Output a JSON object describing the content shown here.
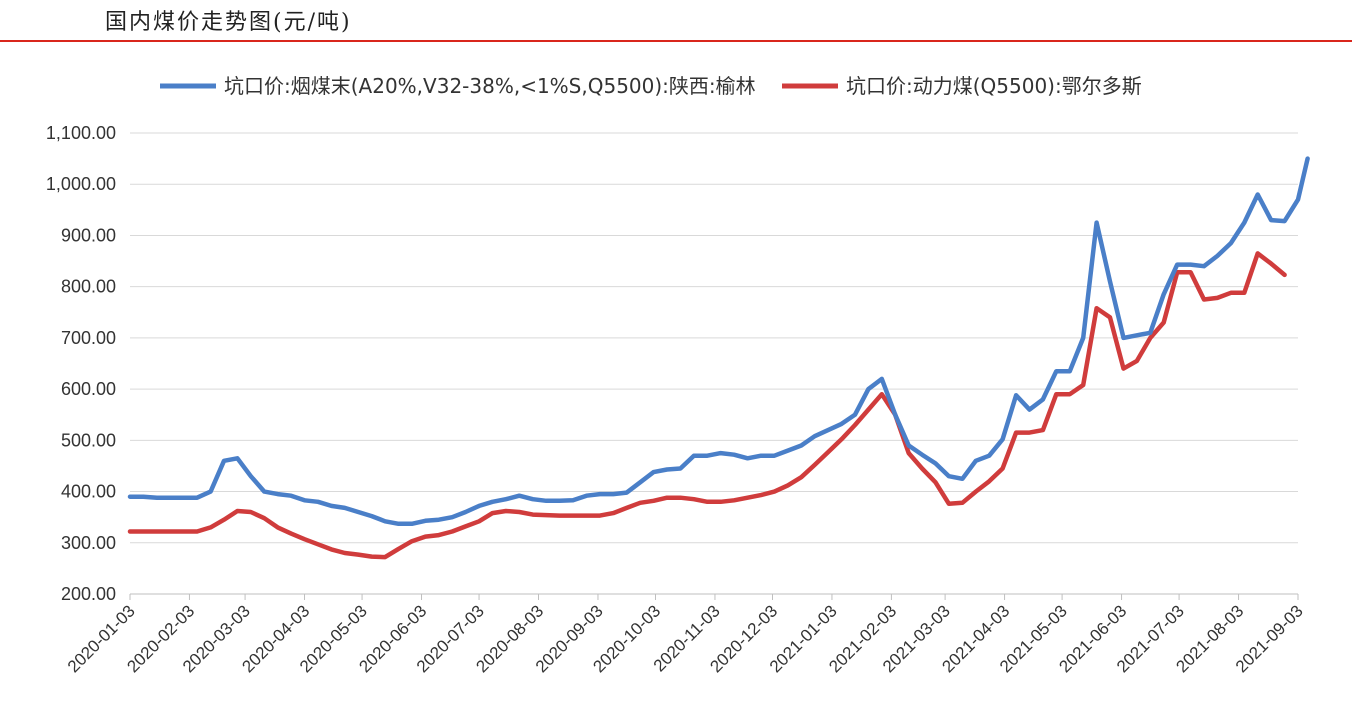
{
  "header": {
    "title": "国内煤价走势图(元/吨)"
  },
  "colors": {
    "series1": "#4a7fc8",
    "series2": "#d03c3c",
    "grid": "#d9d9d9",
    "rule": "#d9261c"
  },
  "chart_data": {
    "type": "line",
    "ylim": [
      200,
      1100
    ],
    "y_ticks": [
      "200.00",
      "300.00",
      "400.00",
      "500.00",
      "600.00",
      "700.00",
      "800.00",
      "900.00",
      "1,000.00",
      "1,100.00"
    ],
    "x_ticks": [
      "2020-01-03",
      "2020-02-03",
      "2020-03-03",
      "2020-04-03",
      "2020-05-03",
      "2020-06-03",
      "2020-07-03",
      "2020-08-03",
      "2020-09-03",
      "2020-10-03",
      "2020-11-03",
      "2020-12-03",
      "2021-01-03",
      "2021-02-03",
      "2021-03-03",
      "2021-04-03",
      "2021-05-03",
      "2021-06-03",
      "2021-07-03",
      "2021-08-03",
      "2021-09-03"
    ],
    "legend_position": "top",
    "grid": true,
    "series": [
      {
        "name": "坑口价:烟煤末(A20%,V32-38%,<1%S,Q5500):陕西:榆林",
        "color": "#4a7fc8",
        "points": [
          [
            "2020-01-03",
            390
          ],
          [
            "2020-01-10",
            390
          ],
          [
            "2020-01-17",
            388
          ],
          [
            "2020-01-24",
            388
          ],
          [
            "2020-01-31",
            388
          ],
          [
            "2020-02-07",
            388
          ],
          [
            "2020-02-14",
            400
          ],
          [
            "2020-02-21",
            460
          ],
          [
            "2020-02-28",
            465
          ],
          [
            "2020-03-06",
            430
          ],
          [
            "2020-03-13",
            400
          ],
          [
            "2020-03-20",
            395
          ],
          [
            "2020-03-27",
            392
          ],
          [
            "2020-04-03",
            383
          ],
          [
            "2020-04-10",
            380
          ],
          [
            "2020-04-17",
            372
          ],
          [
            "2020-04-24",
            368
          ],
          [
            "2020-05-01",
            360
          ],
          [
            "2020-05-08",
            352
          ],
          [
            "2020-05-15",
            342
          ],
          [
            "2020-05-22",
            337
          ],
          [
            "2020-05-29",
            337
          ],
          [
            "2020-06-05",
            343
          ],
          [
            "2020-06-12",
            345
          ],
          [
            "2020-06-19",
            350
          ],
          [
            "2020-06-26",
            360
          ],
          [
            "2020-07-03",
            372
          ],
          [
            "2020-07-10",
            380
          ],
          [
            "2020-07-17",
            385
          ],
          [
            "2020-07-24",
            392
          ],
          [
            "2020-07-31",
            385
          ],
          [
            "2020-08-07",
            382
          ],
          [
            "2020-08-14",
            382
          ],
          [
            "2020-08-21",
            383
          ],
          [
            "2020-08-28",
            392
          ],
          [
            "2020-09-04",
            395
          ],
          [
            "2020-09-11",
            395
          ],
          [
            "2020-09-18",
            398
          ],
          [
            "2020-09-25",
            418
          ],
          [
            "2020-10-02",
            438
          ],
          [
            "2020-10-09",
            443
          ],
          [
            "2020-10-16",
            445
          ],
          [
            "2020-10-23",
            470
          ],
          [
            "2020-10-30",
            470
          ],
          [
            "2020-11-06",
            475
          ],
          [
            "2020-11-13",
            472
          ],
          [
            "2020-11-20",
            465
          ],
          [
            "2020-11-27",
            470
          ],
          [
            "2020-12-04",
            470
          ],
          [
            "2020-12-11",
            480
          ],
          [
            "2020-12-18",
            490
          ],
          [
            "2020-12-25",
            508
          ],
          [
            "2021-01-01",
            520
          ],
          [
            "2021-01-08",
            532
          ],
          [
            "2021-01-15",
            550
          ],
          [
            "2021-01-22",
            600
          ],
          [
            "2021-01-29",
            620
          ],
          [
            "2021-02-05",
            550
          ],
          [
            "2021-02-12",
            490
          ],
          [
            "2021-02-19",
            472
          ],
          [
            "2021-02-26",
            455
          ],
          [
            "2021-03-05",
            430
          ],
          [
            "2021-03-12",
            425
          ],
          [
            "2021-03-19",
            460
          ],
          [
            "2021-03-26",
            470
          ],
          [
            "2021-04-02",
            502
          ],
          [
            "2021-04-09",
            588
          ],
          [
            "2021-04-16",
            560
          ],
          [
            "2021-04-23",
            580
          ],
          [
            "2021-04-30",
            635
          ],
          [
            "2021-05-07",
            635
          ],
          [
            "2021-05-14",
            700
          ],
          [
            "2021-05-21",
            925
          ],
          [
            "2021-05-28",
            810
          ],
          [
            "2021-06-04",
            700
          ],
          [
            "2021-06-11",
            705
          ],
          [
            "2021-06-18",
            710
          ],
          [
            "2021-06-25",
            785
          ],
          [
            "2021-07-02",
            843
          ],
          [
            "2021-07-09",
            843
          ],
          [
            "2021-07-16",
            840
          ],
          [
            "2021-07-23",
            860
          ],
          [
            "2021-07-30",
            885
          ],
          [
            "2021-08-06",
            925
          ],
          [
            "2021-08-13",
            980
          ],
          [
            "2021-08-20",
            930
          ],
          [
            "2021-08-27",
            928
          ],
          [
            "2021-09-03",
            970
          ],
          [
            "2021-09-08",
            1050
          ]
        ]
      },
      {
        "name": "坑口价:动力煤(Q5500):鄂尔多斯",
        "color": "#d03c3c",
        "points": [
          [
            "2020-01-03",
            322
          ],
          [
            "2020-01-10",
            322
          ],
          [
            "2020-01-17",
            322
          ],
          [
            "2020-01-24",
            322
          ],
          [
            "2020-01-31",
            322
          ],
          [
            "2020-02-07",
            322
          ],
          [
            "2020-02-14",
            330
          ],
          [
            "2020-02-21",
            345
          ],
          [
            "2020-02-28",
            362
          ],
          [
            "2020-03-06",
            360
          ],
          [
            "2020-03-13",
            348
          ],
          [
            "2020-03-20",
            330
          ],
          [
            "2020-03-27",
            318
          ],
          [
            "2020-04-03",
            307
          ],
          [
            "2020-04-10",
            297
          ],
          [
            "2020-04-17",
            287
          ],
          [
            "2020-04-24",
            280
          ],
          [
            "2020-05-01",
            277
          ],
          [
            "2020-05-08",
            273
          ],
          [
            "2020-05-15",
            272
          ],
          [
            "2020-05-22",
            288
          ],
          [
            "2020-05-29",
            303
          ],
          [
            "2020-06-05",
            312
          ],
          [
            "2020-06-12",
            315
          ],
          [
            "2020-06-19",
            322
          ],
          [
            "2020-06-26",
            332
          ],
          [
            "2020-07-03",
            342
          ],
          [
            "2020-07-10",
            358
          ],
          [
            "2020-07-17",
            362
          ],
          [
            "2020-07-24",
            360
          ],
          [
            "2020-07-31",
            355
          ],
          [
            "2020-08-07",
            354
          ],
          [
            "2020-08-14",
            353
          ],
          [
            "2020-08-21",
            353
          ],
          [
            "2020-08-28",
            353
          ],
          [
            "2020-09-04",
            353
          ],
          [
            "2020-09-11",
            358
          ],
          [
            "2020-09-18",
            368
          ],
          [
            "2020-09-25",
            378
          ],
          [
            "2020-10-02",
            382
          ],
          [
            "2020-10-09",
            388
          ],
          [
            "2020-10-16",
            388
          ],
          [
            "2020-10-23",
            385
          ],
          [
            "2020-10-30",
            380
          ],
          [
            "2020-11-06",
            380
          ],
          [
            "2020-11-13",
            383
          ],
          [
            "2020-11-20",
            388
          ],
          [
            "2020-11-27",
            393
          ],
          [
            "2020-12-04",
            400
          ],
          [
            "2020-12-11",
            412
          ],
          [
            "2020-12-18",
            428
          ],
          [
            "2020-12-25",
            452
          ],
          [
            "2021-01-01",
            477
          ],
          [
            "2021-01-08",
            502
          ],
          [
            "2021-01-15",
            530
          ],
          [
            "2021-01-22",
            560
          ],
          [
            "2021-01-29",
            590
          ],
          [
            "2021-02-05",
            550
          ],
          [
            "2021-02-12",
            475
          ],
          [
            "2021-02-19",
            445
          ],
          [
            "2021-02-26",
            418
          ],
          [
            "2021-03-05",
            376
          ],
          [
            "2021-03-12",
            378
          ],
          [
            "2021-03-19",
            400
          ],
          [
            "2021-03-26",
            420
          ],
          [
            "2021-04-02",
            445
          ],
          [
            "2021-04-09",
            515
          ],
          [
            "2021-04-16",
            515
          ],
          [
            "2021-04-23",
            520
          ],
          [
            "2021-04-30",
            590
          ],
          [
            "2021-05-07",
            590
          ],
          [
            "2021-05-14",
            608
          ],
          [
            "2021-05-21",
            758
          ],
          [
            "2021-05-28",
            740
          ],
          [
            "2021-06-04",
            640
          ],
          [
            "2021-06-11",
            655
          ],
          [
            "2021-06-18",
            700
          ],
          [
            "2021-06-25",
            730
          ],
          [
            "2021-07-02",
            828
          ],
          [
            "2021-07-09",
            828
          ],
          [
            "2021-07-16",
            775
          ],
          [
            "2021-07-23",
            778
          ],
          [
            "2021-07-30",
            788
          ],
          [
            "2021-08-06",
            788
          ],
          [
            "2021-08-13",
            865
          ],
          [
            "2021-08-20",
            845
          ],
          [
            "2021-08-27",
            823
          ]
        ]
      }
    ]
  }
}
